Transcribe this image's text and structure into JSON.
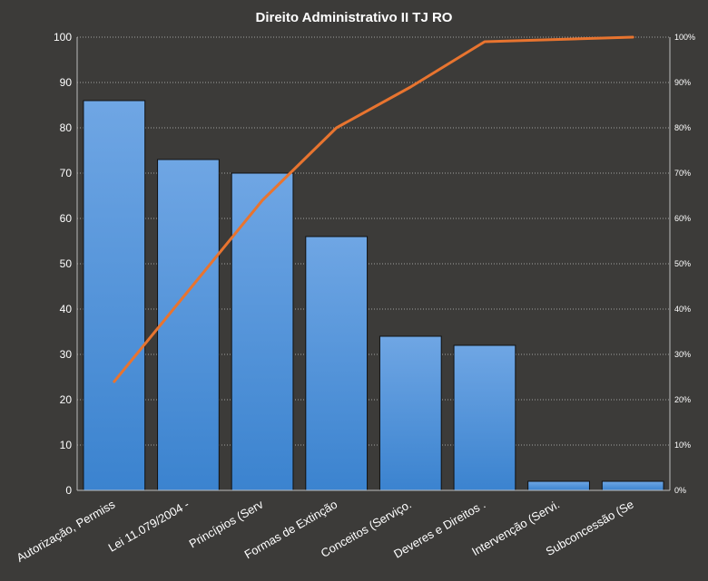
{
  "chart_data": {
    "type": "bar",
    "title": "Direito  Administrativo  II TJ RO",
    "categories": [
      "Autorização, Permiss",
      "Lei 11.079/2004 -",
      "Princípios (Serv",
      "Formas  de Extinção",
      "Conceitos (Serviço.",
      "Deveres e Direitos .",
      "Intervenção (Servi.",
      "Subconcessão (Se"
    ],
    "values": [
      86,
      73,
      70,
      56,
      34,
      32,
      2,
      2
    ],
    "ylim": [
      0,
      100
    ],
    "yticks": [
      "0",
      "10",
      "20",
      "30",
      "40",
      "50",
      "60",
      "70",
      "80",
      "90",
      "100"
    ],
    "y2lim": [
      0,
      100
    ],
    "y2ticks": [
      "0%",
      "10%",
      "20%",
      "30%",
      "40%",
      "50%",
      "60%",
      "70%",
      "80%",
      "90%",
      "100%"
    ],
    "cumulative_percent": [
      24,
      44,
      64,
      80,
      89,
      99,
      99.5,
      100
    ],
    "grid": true,
    "legend": "none",
    "colors": {
      "background": "#3c3b39",
      "bar_top": "#6fa6e4",
      "bar_bottom": "#3b83cf",
      "bar_edge": "#111111",
      "line": "#e8742f",
      "grid": "#a0a0a0",
      "text": "#ffffff"
    }
  }
}
